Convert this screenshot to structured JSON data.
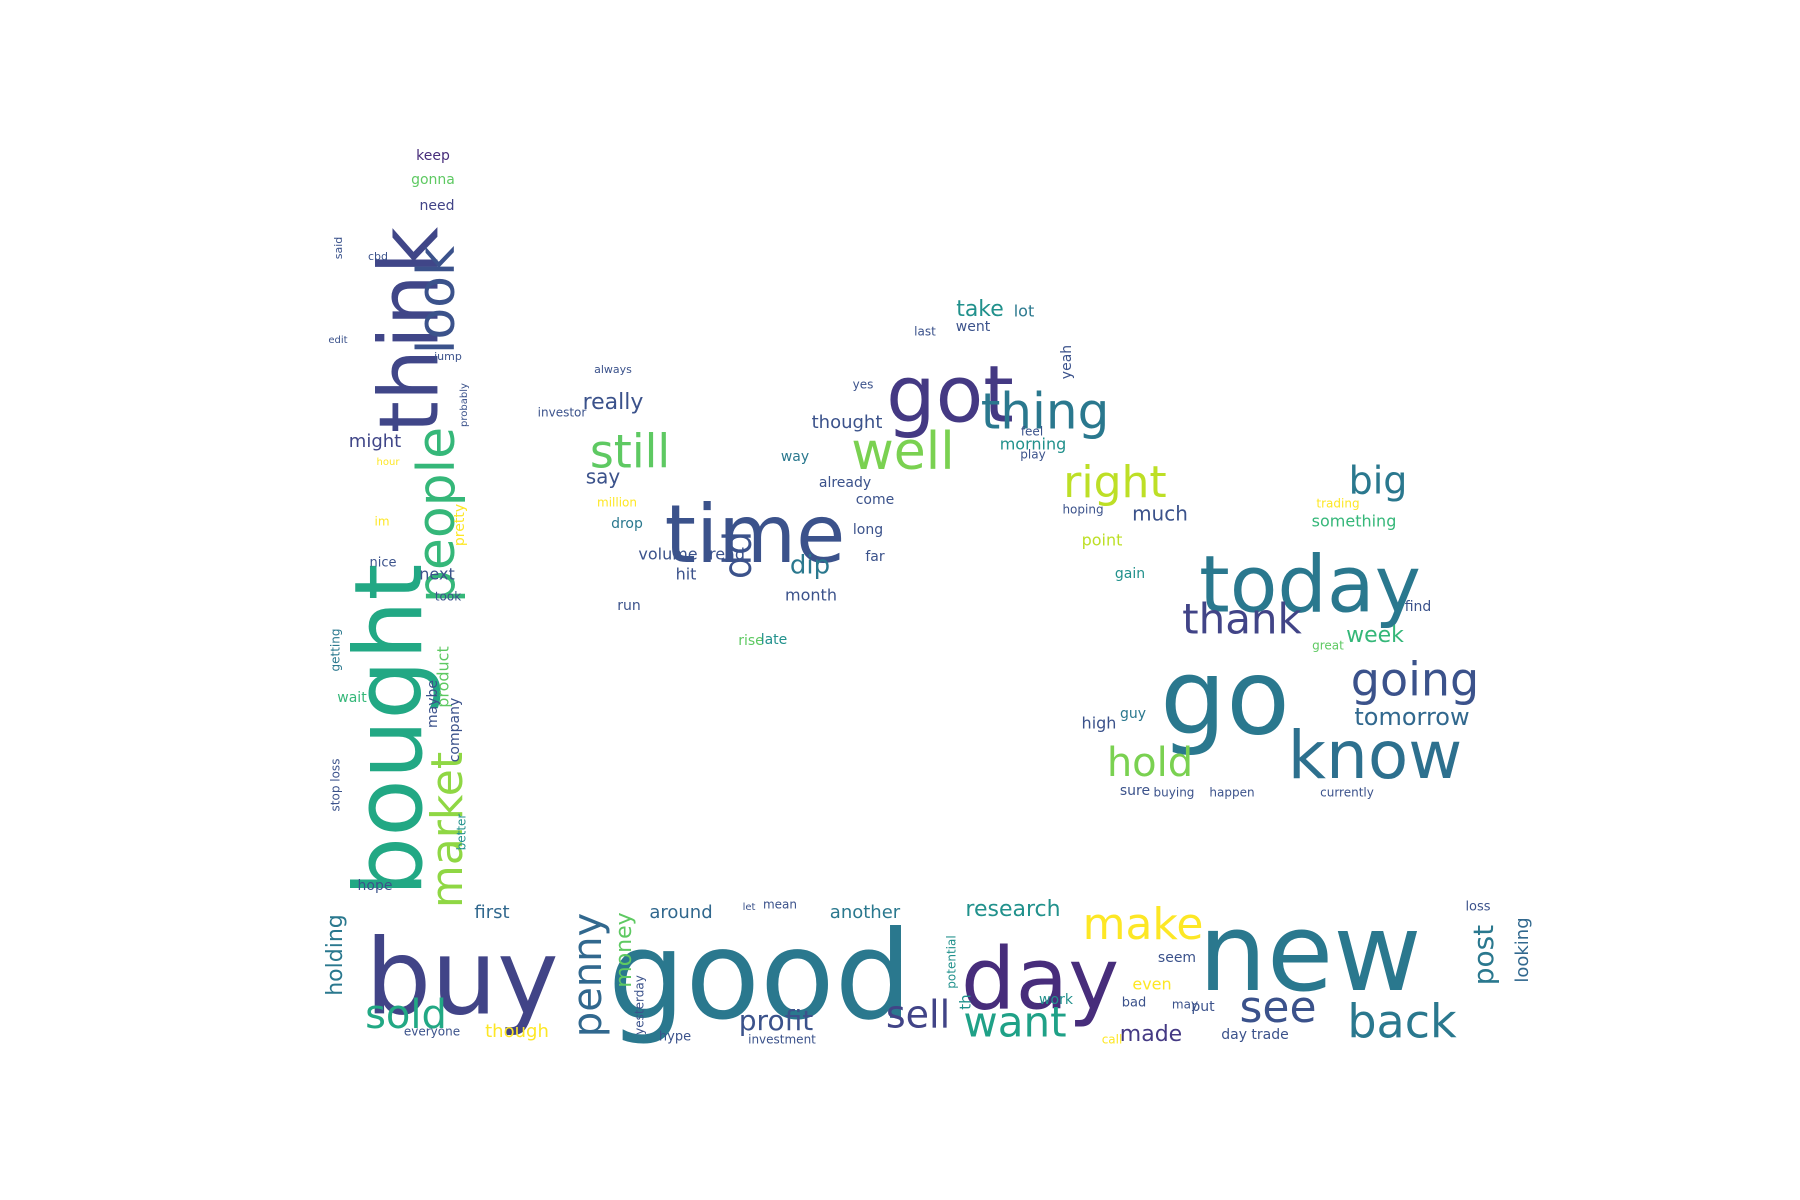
{
  "wordcloud": {
    "palette": [
      "#440154",
      "#3b528b",
      "#21918c",
      "#5ec962",
      "#fde725"
    ],
    "words": [
      {
        "text": "good",
        "color": "#2a788e"
      },
      {
        "text": "new",
        "color": "#2a788e"
      },
      {
        "text": "buy",
        "color": "#414487"
      },
      {
        "text": "day",
        "color": "#472d7b"
      },
      {
        "text": "bought",
        "color": "#22a884"
      },
      {
        "text": "time",
        "color": "#3b528b"
      },
      {
        "text": "today",
        "color": "#2a788e"
      },
      {
        "text": "go",
        "color": "#2a788e"
      },
      {
        "text": "got",
        "color": "#443983"
      },
      {
        "text": "think",
        "color": "#404688"
      },
      {
        "text": "know",
        "color": "#2d708e"
      },
      {
        "text": "thing",
        "color": "#2a788e"
      },
      {
        "text": "well",
        "color": "#7ad151"
      },
      {
        "text": "still",
        "color": "#5ec962"
      },
      {
        "text": "right",
        "color": "#bddf26"
      },
      {
        "text": "look",
        "color": "#3b528b"
      },
      {
        "text": "people",
        "color": "#35b779"
      },
      {
        "text": "market",
        "color": "#8fd744"
      },
      {
        "text": "make",
        "color": "#fde725"
      },
      {
        "text": "back",
        "color": "#2a788e"
      },
      {
        "text": "want",
        "color": "#1fa187"
      },
      {
        "text": "sell",
        "color": "#414487"
      },
      {
        "text": "see",
        "color": "#3b528b"
      },
      {
        "text": "sold",
        "color": "#22a884"
      },
      {
        "text": "penny",
        "color": "#31688e"
      },
      {
        "text": "going",
        "color": "#3b528b"
      },
      {
        "text": "hold",
        "color": "#7ad151"
      },
      {
        "text": "thank",
        "color": "#414487"
      },
      {
        "text": "big",
        "color": "#2a788e"
      },
      {
        "text": "profit",
        "color": "#3b528b"
      },
      {
        "text": "dd",
        "color": "#3b528b"
      },
      {
        "text": "dip",
        "color": "#2a788e"
      },
      {
        "text": "tomorrow",
        "color": "#31688e"
      },
      {
        "text": "week",
        "color": "#35b779"
      },
      {
        "text": "post",
        "color": "#2a788e"
      },
      {
        "text": "research",
        "color": "#21918c"
      },
      {
        "text": "made",
        "color": "#443983"
      },
      {
        "text": "holding",
        "color": "#2a788e"
      },
      {
        "text": "money",
        "color": "#5ec962"
      },
      {
        "text": "really",
        "color": "#3b528b"
      },
      {
        "text": "say",
        "color": "#3b528b"
      },
      {
        "text": "take",
        "color": "#21918c"
      },
      {
        "text": "much",
        "color": "#3b528b"
      },
      {
        "text": "morning",
        "color": "#21918c"
      },
      {
        "text": "first",
        "color": "#31688e"
      },
      {
        "text": "around",
        "color": "#31688e"
      },
      {
        "text": "another",
        "color": "#2a788e"
      },
      {
        "text": "though",
        "color": "#fde725"
      },
      {
        "text": "looking",
        "color": "#31688e"
      },
      {
        "text": "might",
        "color": "#404688"
      },
      {
        "text": "gonna",
        "color": "#5ec962"
      },
      {
        "text": "keep",
        "color": "#472d7b"
      },
      {
        "text": "need",
        "color": "#414487"
      },
      {
        "text": "lot",
        "color": "#2a788e"
      },
      {
        "text": "went",
        "color": "#3b528b"
      },
      {
        "text": "thought",
        "color": "#3b528b"
      },
      {
        "text": "way",
        "color": "#2a788e"
      },
      {
        "text": "already",
        "color": "#3b528b"
      },
      {
        "text": "come",
        "color": "#3b528b"
      },
      {
        "text": "long",
        "color": "#3b528b"
      },
      {
        "text": "far",
        "color": "#3b528b"
      },
      {
        "text": "volume",
        "color": "#3b528b"
      },
      {
        "text": "read",
        "color": "#3b528b"
      },
      {
        "text": "hit",
        "color": "#3b528b"
      },
      {
        "text": "month",
        "color": "#3b528b"
      },
      {
        "text": "drop",
        "color": "#2a788e"
      },
      {
        "text": "run",
        "color": "#3b528b"
      },
      {
        "text": "rise",
        "color": "#5ec962"
      },
      {
        "text": "late",
        "color": "#21918c"
      },
      {
        "text": "point",
        "color": "#bddf26"
      },
      {
        "text": "gain",
        "color": "#21918c"
      },
      {
        "text": "guy",
        "color": "#2a788e"
      },
      {
        "text": "high",
        "color": "#3b528b"
      },
      {
        "text": "sure",
        "color": "#3b528b"
      },
      {
        "text": "buying",
        "color": "#3b528b"
      },
      {
        "text": "happen",
        "color": "#3b528b"
      },
      {
        "text": "currently",
        "color": "#3b528b"
      },
      {
        "text": "something",
        "color": "#35b779"
      },
      {
        "text": "trading",
        "color": "#fde725"
      },
      {
        "text": "find",
        "color": "#3b528b"
      },
      {
        "text": "next",
        "color": "#3b528b"
      },
      {
        "text": "nice",
        "color": "#3b528b"
      },
      {
        "text": "took",
        "color": "#3b528b"
      },
      {
        "text": "im",
        "color": "#fde725"
      },
      {
        "text": "pretty",
        "color": "#fde725"
      },
      {
        "text": "product",
        "color": "#5ec962"
      },
      {
        "text": "company",
        "color": "#3b528b"
      },
      {
        "text": "maybe",
        "color": "#3b528b"
      },
      {
        "text": "wait",
        "color": "#35b779"
      },
      {
        "text": "getting",
        "color": "#2a788e"
      },
      {
        "text": "better",
        "color": "#21918c"
      },
      {
        "text": "hope",
        "color": "#3b528b"
      },
      {
        "text": "stop loss",
        "color": "#3b528b"
      },
      {
        "text": "everyone",
        "color": "#3b528b"
      },
      {
        "text": "yesterday",
        "color": "#3b528b"
      },
      {
        "text": "hype",
        "color": "#3b528b"
      },
      {
        "text": "investment",
        "color": "#3b528b"
      },
      {
        "text": "mean",
        "color": "#3b528b"
      },
      {
        "text": "let",
        "color": "#3b528b"
      },
      {
        "text": "th",
        "color": "#21918c"
      },
      {
        "text": "work",
        "color": "#21918c"
      },
      {
        "text": "seem",
        "color": "#3b528b"
      },
      {
        "text": "even",
        "color": "#fde725"
      },
      {
        "text": "bad",
        "color": "#3b528b"
      },
      {
        "text": "may",
        "color": "#3b528b"
      },
      {
        "text": "put",
        "color": "#3b528b"
      },
      {
        "text": "call",
        "color": "#fde725"
      },
      {
        "text": "day trade",
        "color": "#3b528b"
      },
      {
        "text": "loss",
        "color": "#3b528b"
      },
      {
        "text": "potential",
        "color": "#21918c"
      },
      {
        "text": "yeah",
        "color": "#3b528b"
      },
      {
        "text": "feel",
        "color": "#3b528b"
      },
      {
        "text": "play",
        "color": "#3b528b"
      },
      {
        "text": "hoping",
        "color": "#3b528b"
      },
      {
        "text": "million",
        "color": "#fde725"
      },
      {
        "text": "always",
        "color": "#3b528b"
      },
      {
        "text": "cbd",
        "color": "#3b528b"
      },
      {
        "text": "jump",
        "color": "#3b528b"
      },
      {
        "text": "said",
        "color": "#3b528b"
      },
      {
        "text": "hour",
        "color": "#fde725"
      },
      {
        "text": "probably",
        "color": "#3b528b"
      },
      {
        "text": "yes",
        "color": "#3b528b"
      },
      {
        "text": "last",
        "color": "#3b528b"
      },
      {
        "text": "great",
        "color": "#5ec962"
      },
      {
        "text": "edit",
        "color": "#3b528b"
      },
      {
        "text": "investor",
        "color": "#3b528b"
      }
    ]
  }
}
